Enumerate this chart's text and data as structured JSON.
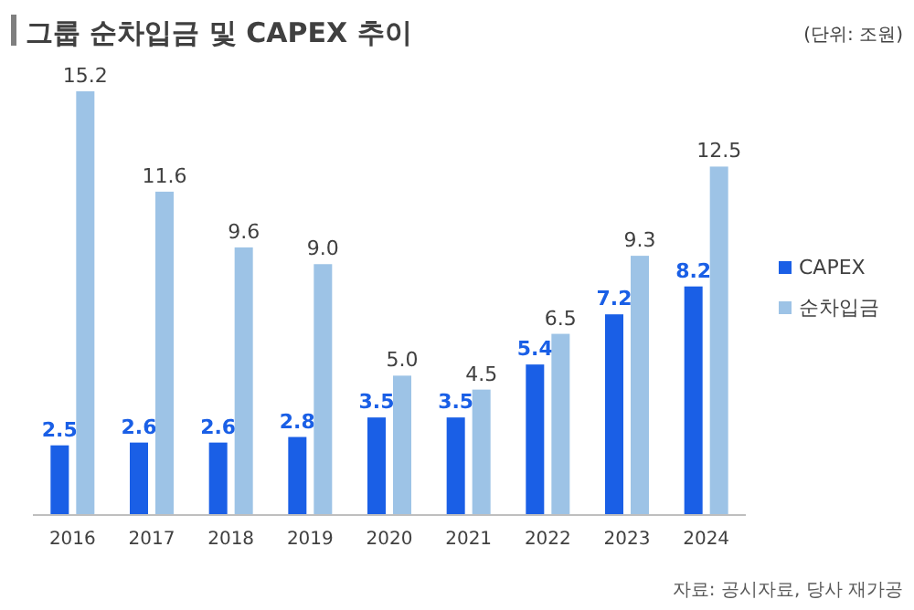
{
  "chart_data": {
    "type": "bar",
    "title": "그룹 순차입금 및 CAPEX 추이",
    "subtitle": "(단위: 조원)",
    "categories": [
      "2016",
      "2017",
      "2018",
      "2019",
      "2020",
      "2021",
      "2022",
      "2023",
      "2024"
    ],
    "series": [
      {
        "name": "CAPEX",
        "color": "#1a5fe6",
        "values": [
          2.5,
          2.6,
          2.6,
          2.8,
          3.5,
          3.5,
          5.4,
          7.2,
          8.2
        ]
      },
      {
        "name": "순차입금",
        "color": "#9dc3e6",
        "values": [
          15.2,
          11.6,
          9.6,
          9.0,
          5.0,
          4.5,
          6.5,
          9.3,
          12.5
        ],
        "value_labels": [
          "15.2",
          "11.6",
          "9.6",
          "9.0",
          "5.0",
          "4.5",
          "6.5",
          "9.3",
          "12.5"
        ]
      }
    ],
    "data_labels": true,
    "legend": "right",
    "annotations": [
      "자료: 공시자료, 당사 재가공"
    ]
  }
}
